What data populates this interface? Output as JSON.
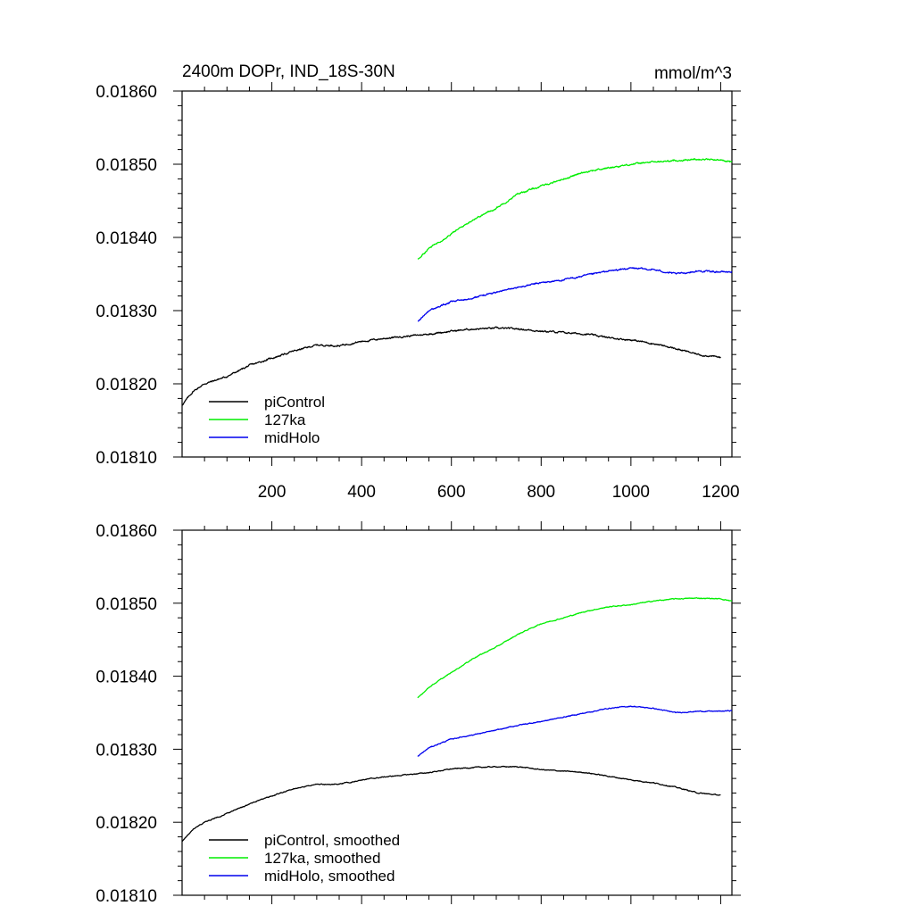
{
  "chart_data": [
    {
      "type": "line",
      "title": "2400m DOPr, IND_18S-30N",
      "units": "mmol/m^3",
      "xlim": [
        0,
        1225
      ],
      "ylim": [
        0.0181,
        0.0186
      ],
      "xticks": [
        200,
        400,
        600,
        800,
        1000,
        1200
      ],
      "xtick_labels": [
        "200",
        "400",
        "600",
        "800",
        "1000",
        "1200"
      ],
      "xticks_labeled": true,
      "yticks": [
        0.0181,
        0.0182,
        0.0183,
        0.0184,
        0.0185,
        0.0186
      ],
      "ytick_labels": [
        "0.01810",
        "0.01820",
        "0.01830",
        "0.01840",
        "0.01850",
        "0.01860"
      ],
      "legend": "bottom-left",
      "noise": 7e-07,
      "series": [
        {
          "name": "piControl",
          "color": "#000000",
          "x": [
            0,
            25,
            50,
            100,
            150,
            200,
            250,
            300,
            350,
            400,
            450,
            500,
            550,
            600,
            650,
            700,
            750,
            800,
            850,
            900,
            950,
            1000,
            1050,
            1100,
            1150,
            1200
          ],
          "y": [
            0.018171,
            0.01819,
            0.0182,
            0.01821,
            0.018225,
            0.018235,
            0.018245,
            0.018253,
            0.018252,
            0.018258,
            0.018262,
            0.018265,
            0.018268,
            0.018272,
            0.018275,
            0.018276,
            0.018275,
            0.018272,
            0.01827,
            0.018268,
            0.018263,
            0.01826,
            0.018255,
            0.018248,
            0.01824,
            0.018236
          ]
        },
        {
          "name": "127ka",
          "color": "#00ee00",
          "x": [
            525,
            550,
            575,
            600,
            650,
            700,
            750,
            800,
            850,
            900,
            950,
            1000,
            1050,
            1100,
            1150,
            1200,
            1225
          ],
          "y": [
            0.01837,
            0.018385,
            0.018395,
            0.018405,
            0.018425,
            0.01844,
            0.01846,
            0.01847,
            0.01848,
            0.01849,
            0.018495,
            0.0185,
            0.018503,
            0.018505,
            0.018507,
            0.018506,
            0.018503
          ]
        },
        {
          "name": "midHolo",
          "color": "#0000ee",
          "x": [
            525,
            550,
            600,
            650,
            700,
            750,
            800,
            850,
            900,
            950,
            1000,
            1050,
            1100,
            1150,
            1200,
            1225
          ],
          "y": [
            0.018285,
            0.0183,
            0.018312,
            0.018318,
            0.018325,
            0.018332,
            0.018338,
            0.018342,
            0.018348,
            0.018354,
            0.018358,
            0.018356,
            0.01835,
            0.018354,
            0.018353,
            0.018353
          ]
        }
      ]
    },
    {
      "type": "line",
      "title": "",
      "units": "",
      "xlim": [
        0,
        1225
      ],
      "ylim": [
        0.0181,
        0.0186
      ],
      "xticks": [
        200,
        400,
        600,
        800,
        1000,
        1200
      ],
      "xtick_labels": [
        "",
        "",
        "",
        "",
        "",
        ""
      ],
      "xticks_labeled": false,
      "yticks": [
        0.0181,
        0.0182,
        0.0183,
        0.0184,
        0.0185,
        0.0186
      ],
      "ytick_labels": [
        "0.01810",
        "0.01820",
        "0.01830",
        "0.01840",
        "0.01850",
        "0.01860"
      ],
      "legend": "bottom-left",
      "noise": 4e-07,
      "series": [
        {
          "name": "piControl, smoothed",
          "color": "#000000",
          "x": [
            0,
            25,
            50,
            100,
            150,
            200,
            250,
            300,
            350,
            400,
            450,
            500,
            550,
            600,
            650,
            700,
            750,
            800,
            850,
            900,
            950,
            1000,
            1050,
            1100,
            1150,
            1200
          ],
          "y": [
            0.018174,
            0.01819,
            0.0182,
            0.018212,
            0.018225,
            0.018236,
            0.018246,
            0.018252,
            0.018252,
            0.018258,
            0.018262,
            0.018265,
            0.018268,
            0.018273,
            0.018275,
            0.018276,
            0.018276,
            0.018272,
            0.01827,
            0.018268,
            0.018263,
            0.018258,
            0.018254,
            0.018248,
            0.01824,
            0.018237
          ]
        },
        {
          "name": "127ka, smoothed",
          "color": "#00ee00",
          "x": [
            525,
            550,
            575,
            600,
            650,
            700,
            750,
            800,
            850,
            900,
            950,
            1000,
            1050,
            1100,
            1150,
            1200,
            1225
          ],
          "y": [
            0.01837,
            0.018385,
            0.018395,
            0.018405,
            0.018425,
            0.01844,
            0.018458,
            0.018472,
            0.01848,
            0.018489,
            0.018495,
            0.018498,
            0.018503,
            0.018506,
            0.018507,
            0.018506,
            0.018503
          ]
        },
        {
          "name": "midHolo, smoothed",
          "color": "#0000ee",
          "x": [
            525,
            550,
            600,
            650,
            700,
            750,
            800,
            850,
            900,
            950,
            1000,
            1050,
            1100,
            1150,
            1200,
            1225
          ],
          "y": [
            0.01829,
            0.018302,
            0.018314,
            0.01832,
            0.018326,
            0.018333,
            0.018338,
            0.018344,
            0.01835,
            0.018356,
            0.018359,
            0.018356,
            0.01835,
            0.018352,
            0.018352,
            0.018353
          ]
        }
      ]
    }
  ]
}
